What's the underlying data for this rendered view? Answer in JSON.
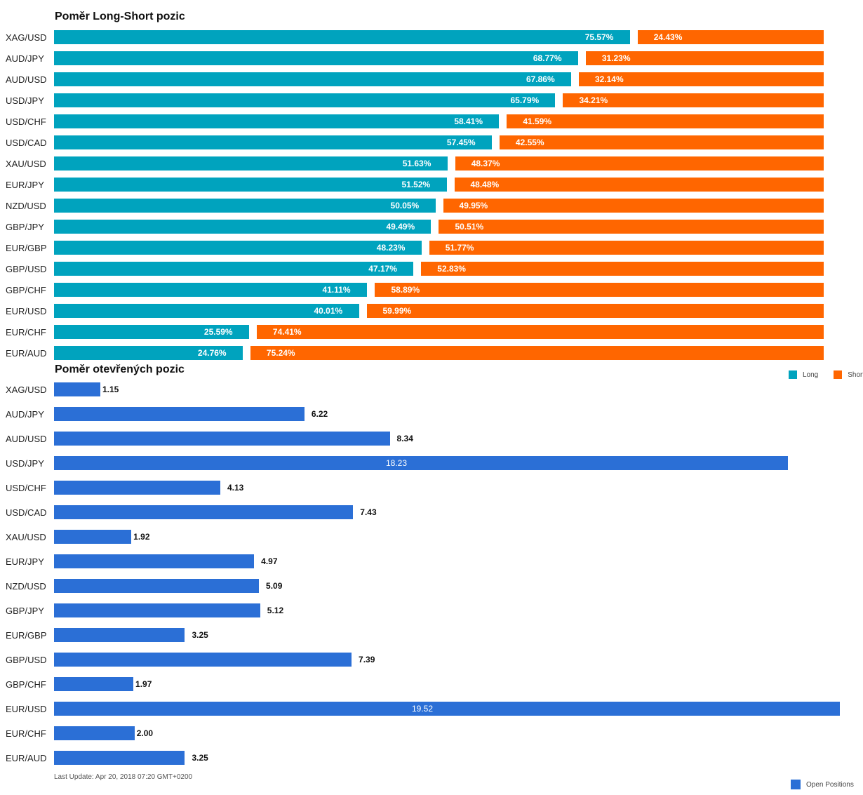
{
  "chart_data": [
    {
      "type": "bar",
      "title": "Poměr Long-Short pozic",
      "stacked": true,
      "orientation": "horizontal",
      "categories": [
        "XAG/USD",
        "AUD/JPY",
        "AUD/USD",
        "USD/JPY",
        "USD/CHF",
        "USD/CAD",
        "XAU/USD",
        "EUR/JPY",
        "NZD/USD",
        "GBP/JPY",
        "EUR/GBP",
        "GBP/USD",
        "GBP/CHF",
        "EUR/USD",
        "EUR/CHF",
        "EUR/AUD"
      ],
      "series": [
        {
          "name": "Long",
          "color": "#00a3be",
          "values": [
            75.57,
            68.77,
            67.86,
            65.79,
            58.41,
            57.45,
            51.63,
            51.52,
            50.05,
            49.49,
            48.23,
            47.17,
            41.11,
            40.01,
            25.59,
            24.76
          ],
          "labels": [
            "75.57%",
            "68.77%",
            "67.86%",
            "65.79%",
            "58.41%",
            "57.45%",
            "51.63%",
            "51.52%",
            "50.05%",
            "49.49%",
            "48.23%",
            "47.17%",
            "41.11%",
            "40.01%",
            "25.59%",
            "24.76%"
          ]
        },
        {
          "name": "Short",
          "color": "#ff6600",
          "values": [
            24.43,
            31.23,
            32.14,
            34.21,
            41.59,
            42.55,
            48.37,
            48.48,
            49.95,
            50.51,
            51.77,
            52.83,
            58.89,
            59.99,
            74.41,
            75.24
          ],
          "labels": [
            "24.43%",
            "31.23%",
            "32.14%",
            "34.21%",
            "41.59%",
            "42.55%",
            "48.37%",
            "48.48%",
            "49.95%",
            "50.51%",
            "51.77%",
            "52.83%",
            "58.89%",
            "59.99%",
            "74.41%",
            "75.24%"
          ]
        }
      ],
      "xlim": [
        0,
        100
      ],
      "legend": "bottom-right",
      "grid": false
    },
    {
      "type": "bar",
      "title": "Poměr otevřených pozic",
      "orientation": "horizontal",
      "categories": [
        "XAG/USD",
        "AUD/JPY",
        "AUD/USD",
        "USD/JPY",
        "USD/CHF",
        "USD/CAD",
        "XAU/USD",
        "EUR/JPY",
        "NZD/USD",
        "GBP/JPY",
        "EUR/GBP",
        "GBP/USD",
        "GBP/CHF",
        "EUR/USD",
        "EUR/CHF",
        "EUR/AUD"
      ],
      "series": [
        {
          "name": "Open Positions",
          "color": "#2b6fd6",
          "values": [
            1.15,
            6.22,
            8.34,
            18.23,
            4.13,
            7.43,
            1.92,
            4.97,
            5.09,
            5.12,
            3.25,
            7.39,
            1.97,
            19.52,
            2.0,
            3.25
          ],
          "labels": [
            "1.15",
            "6.22",
            "8.34",
            "18.23",
            "4.13",
            "7.43",
            "1.92",
            "4.97",
            "5.09",
            "5.12",
            "3.25",
            "7.39",
            "1.97",
            "19.52",
            "2.00",
            "3.25"
          ]
        }
      ],
      "xlim": [
        0,
        19.52
      ],
      "legend": "bottom-right",
      "grid": false
    }
  ],
  "footer": {
    "last_update": "Last Update: Apr 20, 2018 07:20 GMT+0200"
  }
}
